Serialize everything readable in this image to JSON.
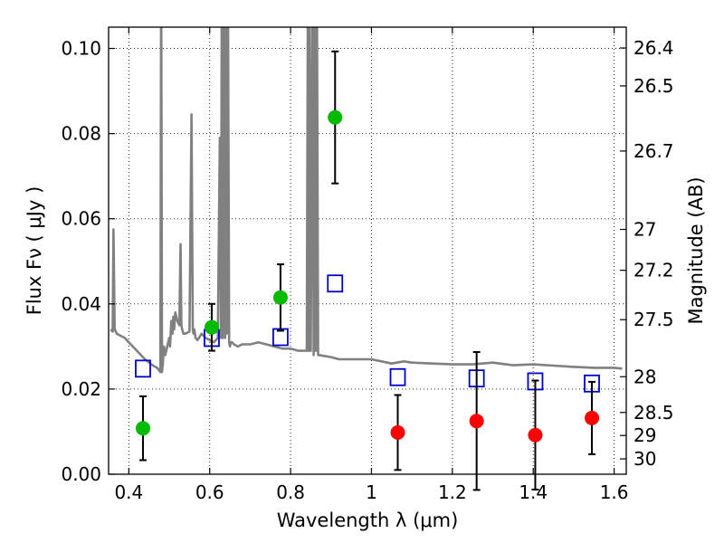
{
  "chart_data": {
    "type": "scatter",
    "title": "",
    "xlabel": "Wavelength  λ (μm)",
    "ylabel": "Flux  Fν  ( μJy )",
    "y2label": "Magnitude (AB)",
    "xlim": [
      0.35,
      1.63
    ],
    "ylim": [
      0.0,
      0.105
    ],
    "grid": true,
    "x_ticks": [
      0.4,
      0.6,
      0.8,
      1.0,
      1.2,
      1.4,
      1.6
    ],
    "x_tick_labels": [
      "0.4",
      "0.6",
      "0.8",
      "1",
      "1.2",
      "1.4",
      "1.6"
    ],
    "y_ticks": [
      0.0,
      0.02,
      0.04,
      0.06,
      0.08,
      0.1
    ],
    "y_tick_labels": [
      "0.00",
      "0.02",
      "0.04",
      "0.06",
      "0.08",
      "0.10"
    ],
    "y2_ticks": [
      {
        "label": "26.4",
        "flux": 0.1001
      },
      {
        "label": "26.5",
        "flux": 0.0912
      },
      {
        "label": "26.7",
        "flux": 0.0759
      },
      {
        "label": "27",
        "flux": 0.0575
      },
      {
        "label": "27.2",
        "flux": 0.0479
      },
      {
        "label": "27.5",
        "flux": 0.0363
      },
      {
        "label": "28",
        "flux": 0.0229
      },
      {
        "label": "28.5",
        "flux": 0.0145
      },
      {
        "label": "29",
        "flux": 0.0091
      },
      {
        "label": "30",
        "flux": 0.0036
      }
    ],
    "series": [
      {
        "marker": "line",
        "color": "#808080",
        "x": [
          0.355,
          0.36,
          0.362,
          0.365,
          0.368,
          0.37,
          0.38,
          0.39,
          0.4,
          0.42,
          0.44,
          0.46,
          0.47,
          0.478,
          0.48,
          0.482,
          0.484,
          0.487,
          0.49,
          0.5,
          0.502,
          0.505,
          0.508,
          0.51,
          0.512,
          0.515,
          0.52,
          0.525,
          0.528,
          0.53,
          0.532,
          0.535,
          0.54,
          0.55,
          0.555,
          0.558,
          0.56,
          0.562,
          0.565,
          0.57,
          0.58,
          0.59,
          0.6,
          0.61,
          0.62,
          0.625,
          0.628,
          0.63,
          0.632,
          0.635,
          0.638,
          0.64,
          0.642,
          0.645,
          0.648,
          0.65,
          0.652,
          0.655,
          0.66,
          0.67,
          0.68,
          0.7,
          0.72,
          0.74,
          0.76,
          0.78,
          0.8,
          0.82,
          0.84,
          0.843,
          0.845,
          0.847,
          0.85,
          0.855,
          0.857,
          0.86,
          0.862,
          0.865,
          0.868,
          0.87,
          0.9,
          0.92,
          0.95,
          1.0,
          1.05,
          1.08,
          1.1,
          1.15,
          1.2,
          1.25,
          1.3,
          1.35,
          1.4,
          1.45,
          1.5,
          1.55,
          1.6,
          1.62
        ],
        "y": [
          0.034,
          0.0335,
          0.0575,
          0.034,
          0.0335,
          0.033,
          0.0325,
          0.032,
          0.031,
          0.029,
          0.027,
          0.0255,
          0.025,
          0.024,
          0.12,
          0.024,
          0.026,
          0.03,
          0.028,
          0.032,
          0.03,
          0.036,
          0.033,
          0.037,
          0.034,
          0.038,
          0.036,
          0.035,
          0.054,
          0.035,
          0.034,
          0.033,
          0.033,
          0.0335,
          0.0845,
          0.034,
          0.033,
          0.034,
          0.032,
          0.0315,
          0.033,
          0.032,
          0.0315,
          0.031,
          0.032,
          0.079,
          0.032,
          0.12,
          0.032,
          0.12,
          0.032,
          0.12,
          0.033,
          0.12,
          0.031,
          0.03,
          0.031,
          0.031,
          0.0305,
          0.03,
          0.0305,
          0.0305,
          0.031,
          0.0305,
          0.03,
          0.0295,
          0.0295,
          0.029,
          0.029,
          0.12,
          0.029,
          0.12,
          0.029,
          0.12,
          0.028,
          0.12,
          0.029,
          0.12,
          0.028,
          0.028,
          0.0275,
          0.027,
          0.027,
          0.027,
          0.026,
          0.0265,
          0.0262,
          0.026,
          0.0258,
          0.0258,
          0.0262,
          0.0256,
          0.0258,
          0.0255,
          0.0252,
          0.025,
          0.025,
          0.0248
        ]
      },
      {
        "marker": "open-square",
        "color": "#0000cc",
        "x": [
          0.435,
          0.605,
          0.775,
          0.91,
          1.065,
          1.26,
          1.405,
          1.545
        ],
        "y": [
          0.0248,
          0.032,
          0.0322,
          0.0448,
          0.0228,
          0.0225,
          0.0218,
          0.0213
        ]
      },
      {
        "marker": "filled-circle",
        "color": "#00bb00",
        "x": [
          0.435,
          0.605,
          0.775,
          0.91
        ],
        "y": [
          0.0108,
          0.0345,
          0.0415,
          0.0838
        ],
        "yerr": [
          0.0075,
          0.0055,
          0.0078,
          0.0155
        ]
      },
      {
        "marker": "filled-circle",
        "color": "#ff0000",
        "x": [
          1.065,
          1.26,
          1.405,
          1.545
        ],
        "y": [
          0.0098,
          0.0125,
          0.0092,
          0.0132
        ],
        "yerr": [
          0.0088,
          0.0162,
          0.0128,
          0.0085
        ]
      }
    ]
  }
}
